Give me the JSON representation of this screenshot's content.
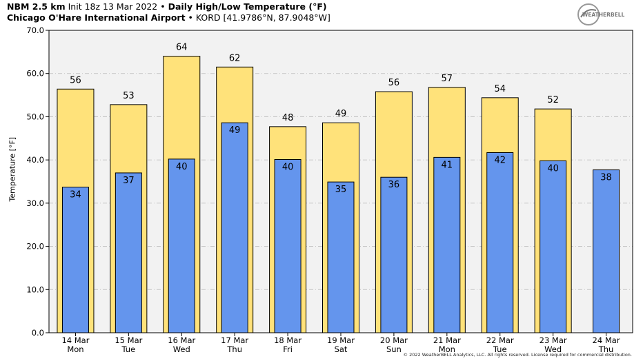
{
  "header": {
    "model": "NBM 2.5 km",
    "init": "Init 18z 13 Mar 2022",
    "sep": "•",
    "title": "Daily High/Low Temperature (°F)",
    "station_name": "Chicago O'Hare International Airport",
    "station_id": "KORD [41.9786°N, 87.9048°W]"
  },
  "logo": {
    "text": "WEATHERBELL"
  },
  "copyright": "© 2022 WeatherBELL Analytics, LLC. All rights reserved. License required for commercial distribution.",
  "colors": {
    "high": "#ffe27a",
    "low": "#6495ed",
    "plot_bg": "#f2f2f2",
    "grid": "#bbbbbb"
  },
  "chart_data": {
    "type": "bar",
    "title": "Daily High/Low Temperature (°F)",
    "ylabel": "Temperature [°F]",
    "xlabel": "",
    "ylim": [
      0,
      70
    ],
    "yticks": [
      "0.0",
      "10.0",
      "20.0",
      "30.0",
      "40.0",
      "50.0",
      "60.0",
      "70.0"
    ],
    "ytick_values": [
      0,
      10,
      20,
      30,
      40,
      50,
      60,
      70
    ],
    "grid": true,
    "categories": [
      {
        "date": "14 Mar",
        "day": "Mon"
      },
      {
        "date": "15 Mar",
        "day": "Tue"
      },
      {
        "date": "16 Mar",
        "day": "Wed"
      },
      {
        "date": "17 Mar",
        "day": "Thu"
      },
      {
        "date": "18 Mar",
        "day": "Fri"
      },
      {
        "date": "19 Mar",
        "day": "Sat"
      },
      {
        "date": "20 Mar",
        "day": "Sun"
      },
      {
        "date": "21 Mar",
        "day": "Mon"
      },
      {
        "date": "22 Mar",
        "day": "Tue"
      },
      {
        "date": "23 Mar",
        "day": "Wed"
      },
      {
        "date": "24 Mar",
        "day": "Thu"
      }
    ],
    "series": [
      {
        "values": [
          56.4,
          52.8,
          64.0,
          61.5,
          47.7,
          48.6,
          55.8,
          56.8,
          54.4,
          51.8,
          null
        ],
        "labels": [
          "56",
          "53",
          "64",
          "62",
          "48",
          "49",
          "56",
          "57",
          "54",
          "52",
          ""
        ]
      },
      {
        "values": [
          33.7,
          37.0,
          40.2,
          48.6,
          40.1,
          34.9,
          36.0,
          40.6,
          41.7,
          39.8,
          37.7
        ],
        "labels": [
          "34",
          "37",
          "40",
          "49",
          "40",
          "35",
          "36",
          "41",
          "42",
          "40",
          "38"
        ]
      }
    ]
  }
}
